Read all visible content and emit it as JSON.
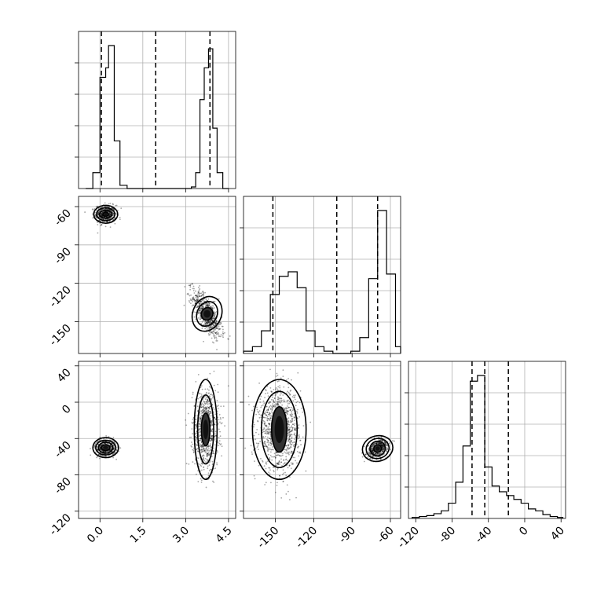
{
  "chart_data": {
    "type": "corner",
    "parameters": [
      {
        "ticks": [
          0.0,
          1.5,
          3.0,
          4.5
        ],
        "tick_labels": [
          "0.0",
          "1.5",
          "3.0",
          "4.5"
        ],
        "range": [
          -0.75,
          4.75
        ],
        "quantiles": [
          0.05,
          1.95,
          3.85
        ],
        "histogram": {
          "edges": [
            -0.5,
            -0.25,
            0.0,
            0.2,
            0.3,
            0.5,
            0.7,
            0.95,
            1.25,
            2.8,
            3.0,
            3.2,
            3.35,
            3.5,
            3.65,
            3.8,
            3.95,
            4.1,
            4.3,
            4.5
          ],
          "counts": [
            0,
            5,
            35,
            38,
            45,
            15,
            1,
            0,
            0,
            0,
            0,
            0.5,
            5,
            28,
            38,
            44,
            19,
            5,
            0
          ]
        }
      },
      {
        "ticks": [
          -60,
          -90,
          -120,
          -150
        ],
        "tick_labels": [
          "-60",
          "-90",
          "-120",
          "-150"
        ],
        "range": [
          -175,
          -52
        ],
        "quantiles": [
          -152,
          -102,
          -70
        ],
        "histogram": {
          "edges": [
            -175,
            -168,
            -161,
            -154,
            -147,
            -140,
            -133,
            -126,
            -119,
            -112,
            -105,
            -98,
            -91,
            -84,
            -77,
            -70,
            -63,
            -56,
            -52
          ],
          "counts": [
            1,
            3,
            10,
            26,
            34,
            36,
            29,
            10,
            3,
            1,
            0,
            0,
            1,
            7,
            33,
            63,
            35,
            3
          ]
        }
      },
      {
        "ticks": [
          40,
          0,
          -40,
          -80,
          -120
        ],
        "tick_labels": [
          "40",
          "0",
          "-40",
          "-80",
          "-120"
        ],
        "range": [
          -128,
          45
        ],
        "quantiles": [
          -58,
          -44,
          -18
        ],
        "histogram": {
          "edges": [
            -124,
            -116,
            -108,
            -100,
            -92,
            -84,
            -76,
            -68,
            -60,
            -52,
            -44,
            -36,
            -28,
            -20,
            -12,
            -4,
            4,
            12,
            20,
            28,
            36,
            42
          ],
          "counts": [
            0.5,
            1,
            1.5,
            2.5,
            4,
            8,
            19,
            38,
            72,
            75,
            27,
            17,
            14,
            12,
            10,
            8,
            5,
            4,
            2,
            1,
            0.5
          ]
        }
      }
    ],
    "pairs": [
      {
        "x_param": 0,
        "y_param": 1,
        "clusters": [
          {
            "center": [
              0.2,
              -66
            ],
            "spread": [
              0.18,
              3.5
            ],
            "n": 550,
            "rho": 0,
            "contours": [
              [
                0.1,
                1.5
              ],
              [
                0.22,
                3
              ],
              [
                0.32,
                5
              ],
              [
                0.42,
                7
              ]
            ]
          },
          {
            "center": [
              3.75,
              -144
            ],
            "spread": [
              0.25,
              9
            ],
            "n": 750,
            "rho": -0.7,
            "contours": [
              [
                0.2,
                5
              ],
              [
                0.35,
                10
              ],
              [
                0.5,
                14
              ]
            ]
          }
        ]
      },
      {
        "x_param": 0,
        "y_param": 2,
        "clusters": [
          {
            "center": [
              0.2,
              -50
            ],
            "spread": [
              0.18,
              4.5
            ],
            "n": 550,
            "rho": 0,
            "contours": [
              [
                0.15,
                3
              ],
              [
                0.25,
                6
              ],
              [
                0.35,
                8
              ],
              [
                0.45,
                11
              ]
            ]
          },
          {
            "center": [
              3.7,
              -30
            ],
            "spread": [
              0.22,
              22
            ],
            "n": 900,
            "rho": 0,
            "contours": [
              [
                0.15,
                18
              ],
              [
                0.28,
                38
              ],
              [
                0.4,
                55
              ]
            ]
          }
        ]
      },
      {
        "x_param": 1,
        "y_param": 2,
        "clusters": [
          {
            "center": [
              -147,
              -30
            ],
            "spread": [
              8,
              22
            ],
            "n": 1100,
            "rho": 0,
            "contours": [
              [
                6,
                25
              ],
              [
                14,
                42
              ],
              [
                21,
                55
              ]
            ]
          },
          {
            "center": [
              -70,
              -51
            ],
            "spread": [
              4,
              5
            ],
            "n": 600,
            "rho": 0.4,
            "contours": [
              [
                3,
                4
              ],
              [
                6,
                8
              ],
              [
                9,
                11
              ],
              [
                12,
                14
              ]
            ]
          }
        ]
      }
    ]
  }
}
